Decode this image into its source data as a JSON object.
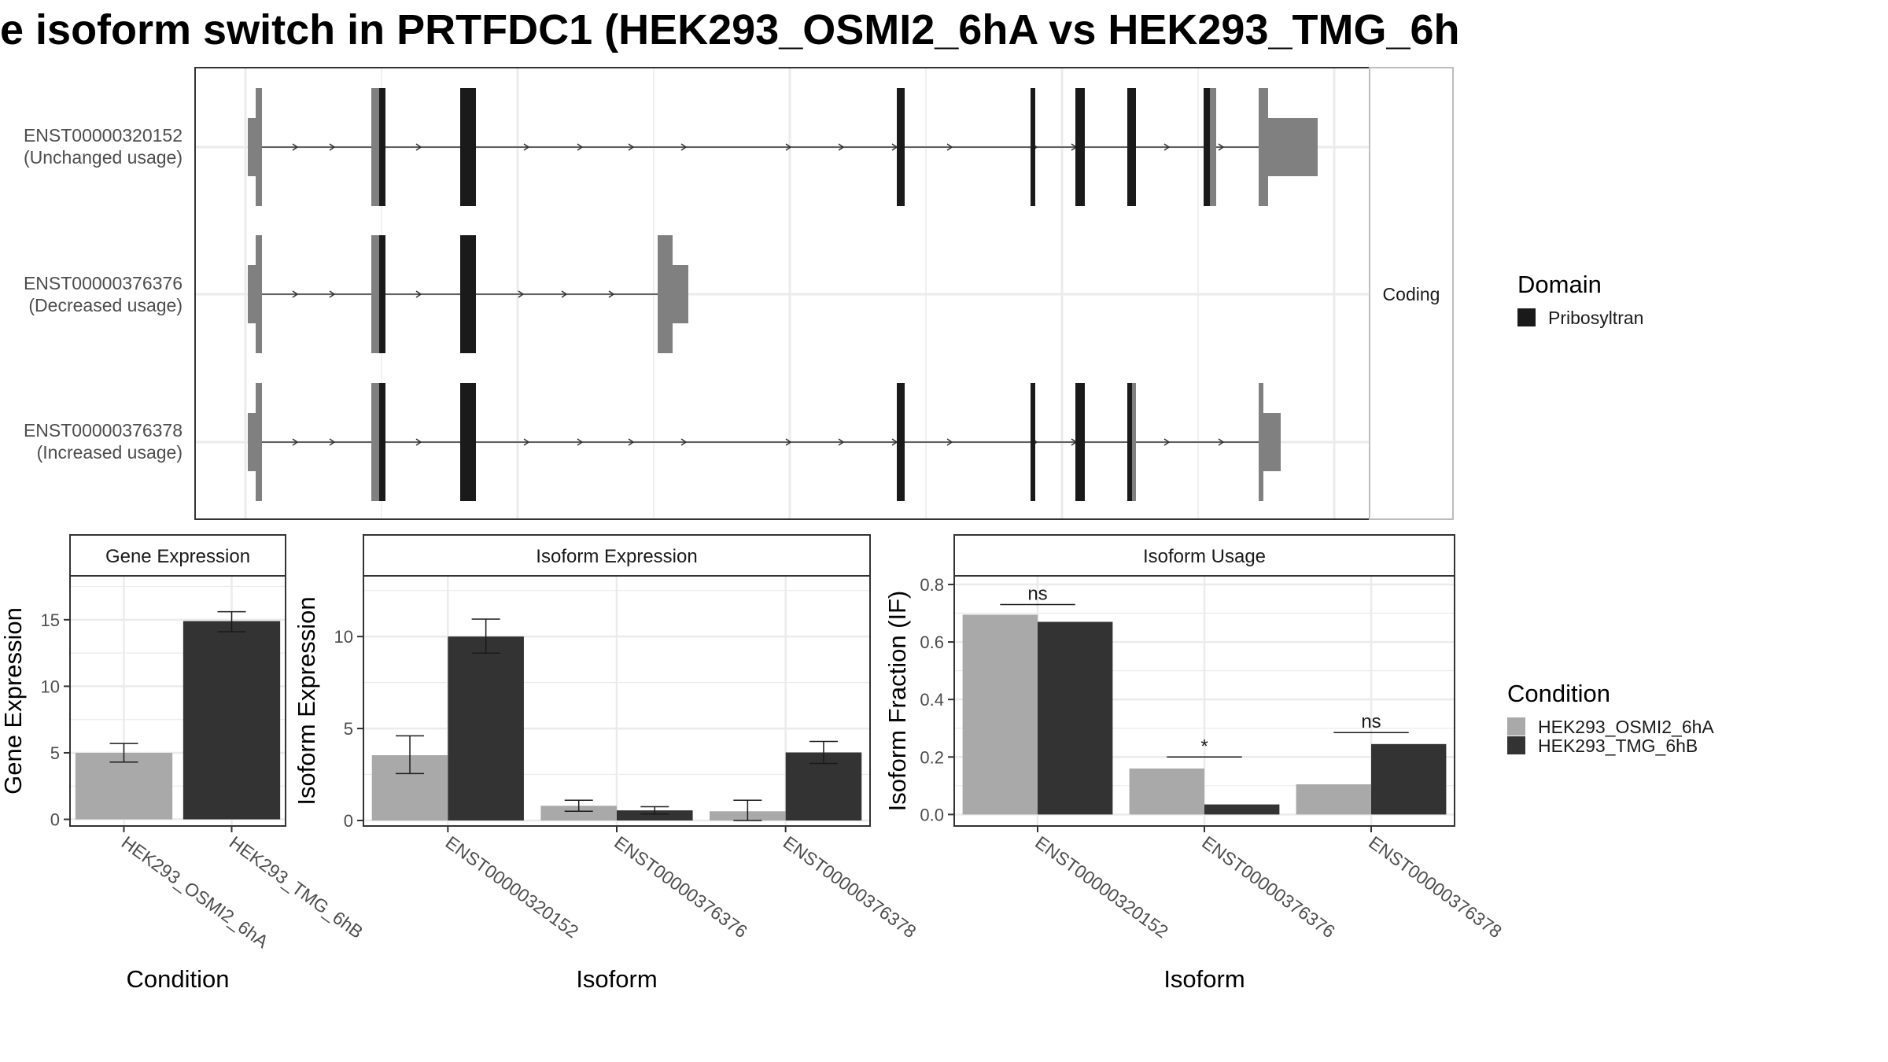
{
  "title": "e isoform switch in PRTFDC1 (HEK293_OSMI2_6hA vs HEK293_TMG_6h",
  "colors": {
    "utr": "#808080",
    "domain": "#1a1a1a",
    "cond_a": "#a9a9a9",
    "cond_b": "#333333",
    "grid": "#ebebeb",
    "panel_border": "#333333"
  },
  "structure": {
    "facet_label": "Coding",
    "isoforms": [
      {
        "id": "ENST00000320152",
        "usage": "(Unchanged usage)"
      },
      {
        "id": "ENST00000376376",
        "usage": "(Decreased usage)"
      },
      {
        "id": "ENST00000376378",
        "usage": "(Increased usage)"
      }
    ]
  },
  "legend_domain": {
    "title": "Domain",
    "items": [
      "Pribosyltran"
    ]
  },
  "legend_condition": {
    "title": "Condition",
    "items": [
      "HEK293_OSMI2_6hA",
      "HEK293_TMG_6hB"
    ]
  },
  "chart_data": [
    {
      "type": "bar",
      "title": "Gene Expression",
      "xlabel": "Condition",
      "ylabel": "Gene Expression",
      "categories": [
        "HEK293_OSMI2_6hA",
        "HEK293_TMG_6hB"
      ],
      "values": [
        5.0,
        14.9
      ],
      "error_low": [
        4.3,
        14.1
      ],
      "error_high": [
        5.7,
        15.6
      ],
      "yticks": [
        0,
        5,
        10,
        15
      ],
      "ylim": [
        -0.5,
        18.3
      ]
    },
    {
      "type": "bar",
      "title": "Isoform Expression",
      "xlabel": "Isoform",
      "ylabel": "Isoform Expression",
      "categories": [
        "ENST00000320152",
        "ENST00000376376",
        "ENST00000376378"
      ],
      "series": [
        {
          "name": "HEK293_OSMI2_6hA",
          "values": [
            3.55,
            0.8,
            0.5
          ],
          "error_low": [
            2.55,
            0.5,
            0.0
          ],
          "error_high": [
            4.6,
            1.1,
            1.1
          ]
        },
        {
          "name": "HEK293_TMG_6hB",
          "values": [
            10.0,
            0.55,
            3.7
          ],
          "error_low": [
            9.1,
            0.35,
            3.1
          ],
          "error_high": [
            10.95,
            0.75,
            4.3
          ]
        }
      ],
      "yticks": [
        0,
        5,
        10
      ],
      "ylim": [
        -0.3,
        13.3
      ]
    },
    {
      "type": "bar",
      "title": "Isoform Usage",
      "xlabel": "Isoform",
      "ylabel": "Isoform Fraction (IF)",
      "categories": [
        "ENST00000320152",
        "ENST00000376376",
        "ENST00000376378"
      ],
      "series": [
        {
          "name": "HEK293_OSMI2_6hA",
          "values": [
            0.695,
            0.16,
            0.105
          ]
        },
        {
          "name": "HEK293_TMG_6hB",
          "values": [
            0.67,
            0.035,
            0.245
          ]
        }
      ],
      "significance": [
        "ns",
        "*",
        "ns"
      ],
      "sig_y": [
        0.73,
        0.2,
        0.285
      ],
      "yticks": [
        0.0,
        0.2,
        0.4,
        0.6,
        0.8
      ],
      "yticklabels": [
        "0.0",
        "0.2",
        "0.4",
        "0.6",
        "0.8"
      ],
      "ylim": [
        -0.04,
        0.83
      ]
    }
  ]
}
